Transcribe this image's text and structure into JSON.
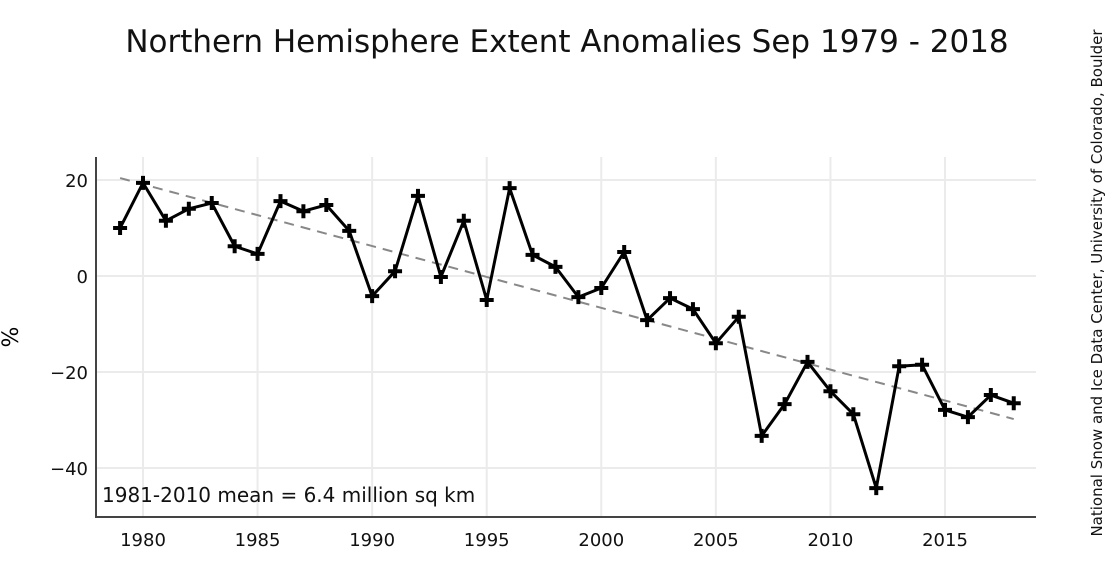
{
  "chart_data": {
    "type": "line",
    "title": "Northern Hemisphere Extent Anomalies Sep 1979 - 2018",
    "xlabel": "",
    "ylabel": "%",
    "source": "National Snow and Ice Data Center, University of Colorado, Boulder",
    "annotation": "1981-2010 mean = 6.4 million sq km",
    "xlim": [
      1978,
      2019
    ],
    "ylim": [
      -50,
      25
    ],
    "grid": true,
    "x_ticks": [
      1980,
      1985,
      1990,
      1995,
      2000,
      2005,
      2010,
      2015
    ],
    "y_ticks": [
      20,
      0,
      -20,
      -40
    ],
    "y_tick_labels": [
      "20",
      "0",
      "−20",
      "−40"
    ],
    "series": [
      {
        "x": [
          1979,
          1980,
          1981,
          1982,
          1983,
          1984,
          1985,
          1986,
          1987,
          1988,
          1989,
          1990,
          1991,
          1992,
          1993,
          1994,
          1995,
          1996,
          1997,
          1998,
          1999,
          2000,
          2001,
          2002,
          2003,
          2004,
          2005,
          2006,
          2007,
          2008,
          2009,
          2010,
          2011,
          2012,
          2013,
          2014,
          2015,
          2016,
          2017,
          2018
        ],
        "y": [
          10.0,
          19.4,
          11.5,
          14.0,
          15.2,
          6.2,
          4.6,
          15.6,
          13.5,
          14.8,
          9.4,
          -4.2,
          1.0,
          16.7,
          -0.2,
          11.5,
          -5.0,
          18.3,
          4.4,
          1.9,
          -4.4,
          -2.5,
          5.0,
          -9.2,
          -4.6,
          -6.9,
          -14.0,
          -8.5,
          -33.3,
          -26.7,
          -17.9,
          -24.0,
          -28.8,
          -44.2,
          -18.8,
          -18.5,
          -27.9,
          -29.4,
          -24.8,
          -26.5
        ],
        "color": "#000000",
        "marker": "plus"
      }
    ],
    "trend": {
      "x": [
        1979,
        2018
      ],
      "y": [
        20.4,
        -29.8
      ],
      "color": "#888888",
      "style": "dashed"
    }
  }
}
